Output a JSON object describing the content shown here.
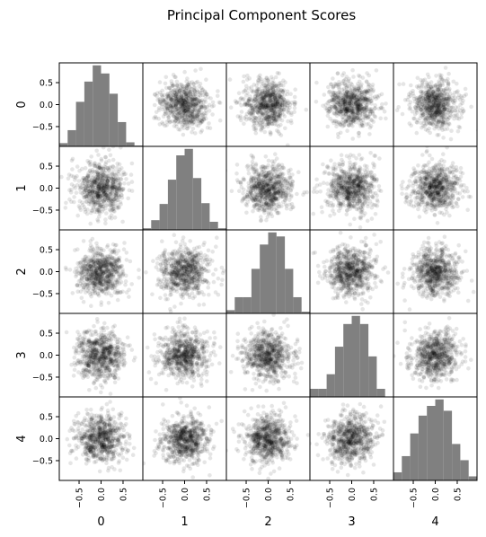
{
  "chart_data": {
    "type": "scatter",
    "title": "Principal Component Scores",
    "subtype": "scatter-matrix",
    "variables": [
      "0",
      "1",
      "2",
      "3",
      "4"
    ],
    "diagonal": "histogram",
    "histogram_bins": 10,
    "point_color": "#000000",
    "point_alpha": 0.1,
    "histogram_color": "#808080",
    "axis_range": [
      -0.95,
      0.95
    ],
    "ticks": [
      -0.5,
      0.0,
      0.5
    ],
    "tick_labels": [
      "−0.5",
      "0.0",
      "0.5"
    ],
    "scatter_std": 0.27,
    "diagonal_histograms": [
      {
        "variable": "0",
        "relative_heights": [
          0.04,
          0.2,
          0.55,
          0.8,
          1.0,
          0.9,
          0.65,
          0.3,
          0.05,
          0.01
        ]
      },
      {
        "variable": "1",
        "relative_heights": [
          0.02,
          0.12,
          0.32,
          0.62,
          0.92,
          1.0,
          0.64,
          0.33,
          0.1,
          0.02
        ]
      },
      {
        "variable": "2",
        "relative_heights": [
          0.04,
          0.2,
          0.2,
          0.55,
          0.85,
          1.0,
          0.95,
          0.55,
          0.2,
          0.02
        ]
      },
      {
        "variable": "3",
        "relative_heights": [
          0.1,
          0.1,
          0.28,
          0.62,
          0.9,
          1.0,
          0.9,
          0.5,
          0.1,
          0.0
        ]
      },
      {
        "variable": "4",
        "relative_heights": [
          0.1,
          0.3,
          0.58,
          0.8,
          0.92,
          1.0,
          0.86,
          0.45,
          0.25,
          0.05
        ]
      }
    ]
  }
}
